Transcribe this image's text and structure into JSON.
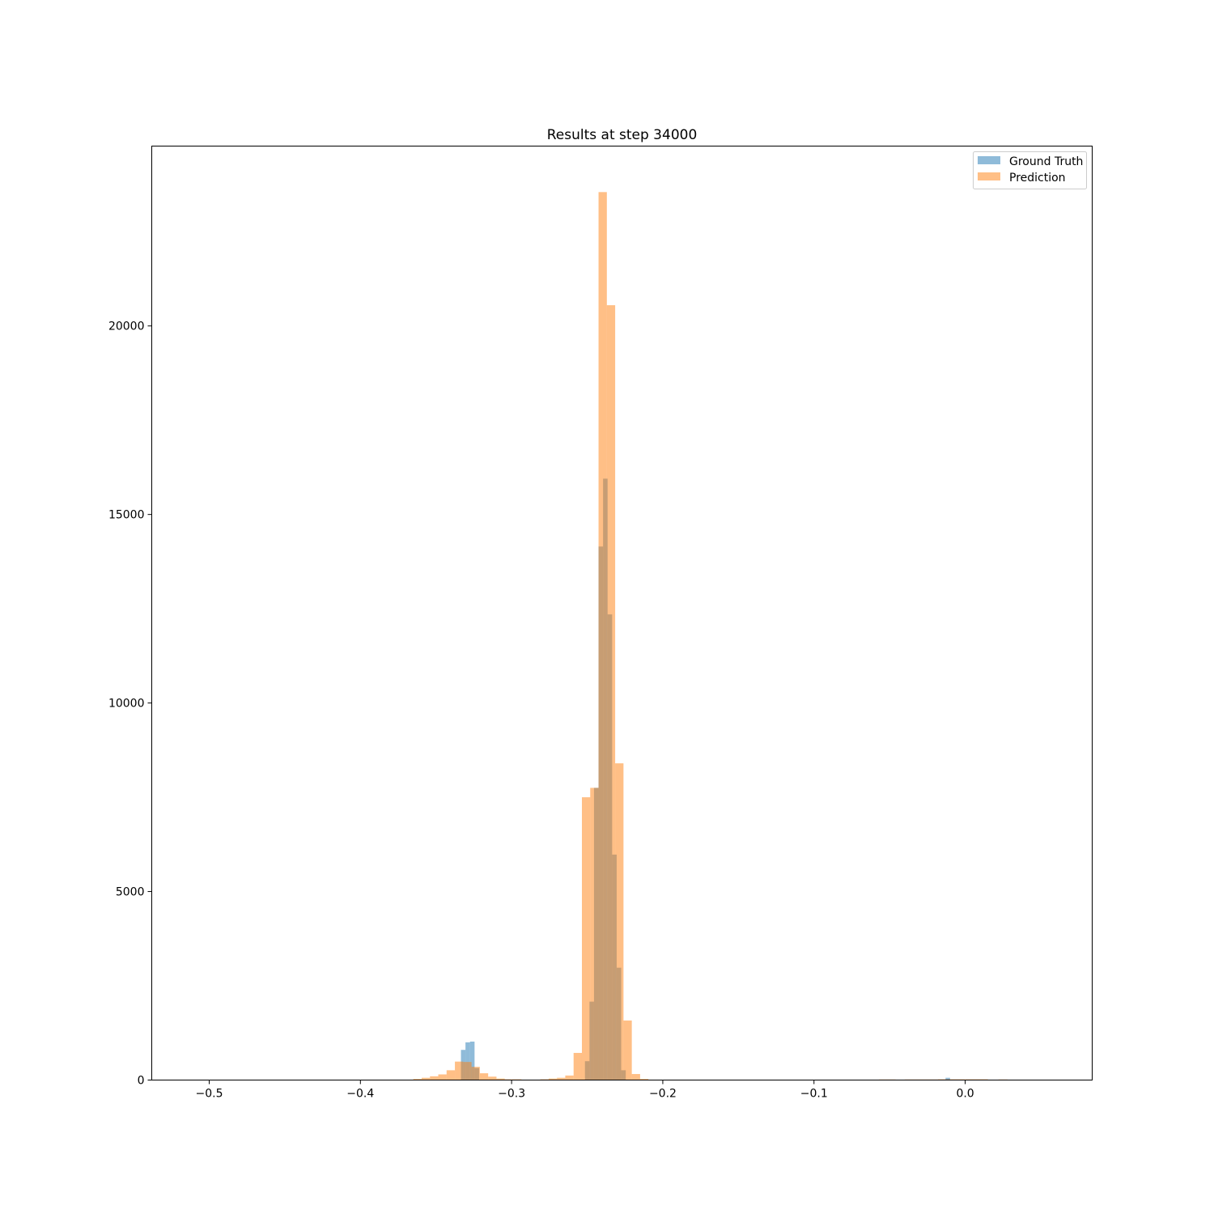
{
  "chart_data": {
    "type": "bar",
    "title": "Results at step 34000",
    "xlabel": "",
    "ylabel": "",
    "xlim": [
      -0.538,
      0.084
    ],
    "ylim": [
      0,
      24770
    ],
    "xticks": [
      -0.5,
      -0.4,
      -0.3,
      -0.2,
      -0.1,
      0.0
    ],
    "xtick_labels": [
      "−0.5",
      "−0.4",
      "−0.3",
      "−0.2",
      "−0.1",
      "0.0"
    ],
    "yticks": [
      0,
      5000,
      10000,
      15000,
      20000
    ],
    "ytick_labels": [
      "0",
      "5000",
      "10000",
      "15000",
      "20000"
    ],
    "grid": false,
    "legend_position": "top-right",
    "series": [
      {
        "name": "Ground Truth",
        "color": "#1f77b4",
        "opacity": 0.5,
        "bins": [
          [
            -0.3335,
            -0.3305,
            800
          ],
          [
            -0.3305,
            -0.3275,
            1000
          ],
          [
            -0.3275,
            -0.3245,
            1020
          ],
          [
            -0.3245,
            -0.3215,
            320
          ],
          [
            -0.2515,
            -0.2485,
            500
          ],
          [
            -0.2485,
            -0.2455,
            2080
          ],
          [
            -0.2455,
            -0.2425,
            7750
          ],
          [
            -0.2425,
            -0.2395,
            14150
          ],
          [
            -0.2395,
            -0.2365,
            15950
          ],
          [
            -0.2365,
            -0.2335,
            12350
          ],
          [
            -0.2335,
            -0.2305,
            5980
          ],
          [
            -0.2305,
            -0.2275,
            2980
          ],
          [
            -0.2275,
            -0.2245,
            260
          ],
          [
            -0.013,
            -0.01,
            60
          ]
        ]
      },
      {
        "name": "Prediction",
        "color": "#ff7f0e",
        "opacity": 0.5,
        "bins": [
          [
            -0.365,
            -0.3595,
            30
          ],
          [
            -0.3595,
            -0.354,
            60
          ],
          [
            -0.354,
            -0.3485,
            100
          ],
          [
            -0.3485,
            -0.343,
            150
          ],
          [
            -0.343,
            -0.3375,
            260
          ],
          [
            -0.3375,
            -0.332,
            490
          ],
          [
            -0.332,
            -0.3265,
            480
          ],
          [
            -0.3265,
            -0.321,
            350
          ],
          [
            -0.321,
            -0.3155,
            180
          ],
          [
            -0.3155,
            -0.31,
            90
          ],
          [
            -0.31,
            -0.3045,
            40
          ],
          [
            -0.3045,
            -0.299,
            20
          ],
          [
            -0.299,
            -0.2935,
            20
          ],
          [
            -0.281,
            -0.2755,
            20
          ],
          [
            -0.2755,
            -0.27,
            40
          ],
          [
            -0.27,
            -0.2645,
            60
          ],
          [
            -0.2645,
            -0.259,
            120
          ],
          [
            -0.259,
            -0.2535,
            720
          ],
          [
            -0.2535,
            -0.248,
            7500
          ],
          [
            -0.248,
            -0.2425,
            7750
          ],
          [
            -0.2425,
            -0.237,
            23550
          ],
          [
            -0.237,
            -0.2315,
            20550
          ],
          [
            -0.2315,
            -0.226,
            8400
          ],
          [
            -0.226,
            -0.2205,
            1580
          ],
          [
            -0.2205,
            -0.215,
            160
          ],
          [
            -0.215,
            -0.2095,
            30
          ],
          [
            -0.057,
            -0.046,
            15
          ],
          [
            -0.04,
            -0.018,
            15
          ],
          [
            -0.018,
            0.015,
            20
          ],
          [
            0.022,
            0.028,
            15
          ]
        ]
      }
    ]
  }
}
